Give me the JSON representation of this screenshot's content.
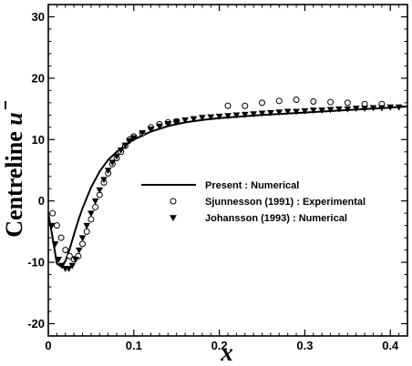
{
  "chart_data": {
    "type": "line",
    "xlabel": "x",
    "ylabel_prefix": "Centreline ",
    "ylabel_var": "u",
    "xlim": [
      0,
      0.42
    ],
    "ylim": [
      -22,
      32
    ],
    "xticks": [
      0,
      0.1,
      0.2,
      0.3,
      0.4
    ],
    "xtick_labels": [
      "0",
      "0.1",
      "0.2",
      "0.3",
      "0.4"
    ],
    "yticks": [
      -20,
      -10,
      0,
      10,
      20,
      30
    ],
    "ytick_labels": [
      "-20",
      "-10",
      "0",
      "10",
      "20",
      "30"
    ],
    "grid": false,
    "legend_position": "center-right",
    "series": [
      {
        "name": "Present : Numerical",
        "style": "line",
        "x": [
          0,
          0.005,
          0.01,
          0.015,
          0.02,
          0.025,
          0.03,
          0.035,
          0.04,
          0.05,
          0.06,
          0.07,
          0.08,
          0.09,
          0.1,
          0.12,
          0.14,
          0.16,
          0.18,
          0.2,
          0.25,
          0.3,
          0.35,
          0.4,
          0.42
        ],
        "y": [
          -2,
          -6,
          -10.2,
          -10.7,
          -9.8,
          -7.8,
          -5.5,
          -3.2,
          -1.2,
          2.2,
          4.8,
          6.7,
          8.0,
          9.1,
          10.0,
          11.3,
          12.2,
          12.8,
          13.2,
          13.5,
          14.0,
          14.4,
          14.8,
          15.2,
          15.4
        ]
      },
      {
        "name": "Sjunnesson (1991) : Experimental",
        "style": "circle",
        "x": [
          0.005,
          0.01,
          0.015,
          0.02,
          0.025,
          0.03,
          0.035,
          0.04,
          0.045,
          0.05,
          0.055,
          0.06,
          0.065,
          0.07,
          0.075,
          0.08,
          0.085,
          0.09,
          0.095,
          0.1,
          0.11,
          0.12,
          0.13,
          0.14,
          0.15,
          0.21,
          0.23,
          0.25,
          0.27,
          0.29,
          0.31,
          0.33,
          0.35,
          0.37,
          0.39
        ],
        "y": [
          -2,
          -4,
          -6,
          -8,
          -9,
          -9.5,
          -9,
          -7,
          -5,
          -3,
          -1,
          1,
          3,
          4.5,
          6,
          7,
          8,
          9,
          10,
          10.5,
          11,
          12,
          12.5,
          12.8,
          13,
          15.5,
          15.5,
          16,
          16.3,
          16.5,
          16.2,
          16.1,
          16,
          15.8,
          15.8
        ]
      },
      {
        "name": "Johansson (1993) : Numerical",
        "style": "triangle-down",
        "x": [
          0.004,
          0.008,
          0.012,
          0.016,
          0.02,
          0.024,
          0.028,
          0.032,
          0.036,
          0.04,
          0.045,
          0.05,
          0.055,
          0.06,
          0.065,
          0.07,
          0.075,
          0.08,
          0.085,
          0.09,
          0.095,
          0.1,
          0.11,
          0.12,
          0.13,
          0.14,
          0.15,
          0.16,
          0.17,
          0.18,
          0.19,
          0.2,
          0.21,
          0.22,
          0.23,
          0.24,
          0.25,
          0.26,
          0.27,
          0.28,
          0.29,
          0.3,
          0.31,
          0.32,
          0.33,
          0.34,
          0.35,
          0.36,
          0.37,
          0.38,
          0.39,
          0.4,
          0.41
        ],
        "y": [
          -4,
          -7,
          -9.5,
          -10.5,
          -11,
          -11,
          -10.5,
          -9.5,
          -8,
          -6,
          -4,
          -2,
          0,
          1.8,
          3.5,
          5,
          6.3,
          7.3,
          8.3,
          9.1,
          9.8,
          10.3,
          11.1,
          11.7,
          12.2,
          12.6,
          12.9,
          13.2,
          13.4,
          13.6,
          13.7,
          13.8,
          13.9,
          14.0,
          14.1,
          14.2,
          14.3,
          14.4,
          14.5,
          14.6,
          14.6,
          14.7,
          14.8,
          14.8,
          14.9,
          15.0,
          15.0,
          15.1,
          15.1,
          15.2,
          15.2,
          15.3,
          15.3
        ]
      }
    ]
  }
}
